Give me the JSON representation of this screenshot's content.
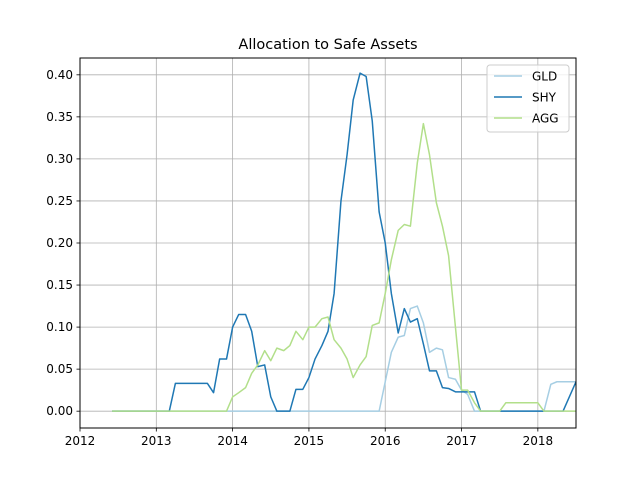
{
  "chart_data": {
    "type": "line",
    "title": "Allocation to Safe Assets",
    "xlabel": "",
    "ylabel": "",
    "xlim": [
      2012.0,
      2018.5
    ],
    "ylim": [
      -0.02,
      0.42
    ],
    "xticks": [
      2012,
      2013,
      2014,
      2015,
      2016,
      2017,
      2018
    ],
    "xtick_labels": [
      "2012",
      "2013",
      "2014",
      "2015",
      "2016",
      "2017",
      "2018"
    ],
    "yticks": [
      0.0,
      0.05,
      0.1,
      0.15,
      0.2,
      0.25,
      0.3,
      0.35,
      0.4
    ],
    "ytick_labels": [
      "0.00",
      "0.05",
      "0.10",
      "0.15",
      "0.20",
      "0.25",
      "0.30",
      "0.35",
      "0.40"
    ],
    "grid": true,
    "legend": "top-right",
    "series": [
      {
        "name": "GLD",
        "color": "#a6cee3",
        "points": [
          [
            2012.42,
            0.0
          ],
          [
            2015.92,
            0.0
          ],
          [
            2016.0,
            0.035
          ],
          [
            2016.08,
            0.07
          ],
          [
            2016.17,
            0.088
          ],
          [
            2016.25,
            0.09
          ],
          [
            2016.33,
            0.122
          ],
          [
            2016.42,
            0.125
          ],
          [
            2016.5,
            0.105
          ],
          [
            2016.58,
            0.07
          ],
          [
            2016.67,
            0.075
          ],
          [
            2016.75,
            0.073
          ],
          [
            2016.83,
            0.04
          ],
          [
            2016.92,
            0.038
          ],
          [
            2017.0,
            0.025
          ],
          [
            2017.08,
            0.02
          ],
          [
            2017.17,
            0.0
          ],
          [
            2018.08,
            0.0
          ],
          [
            2018.17,
            0.032
          ],
          [
            2018.25,
            0.035
          ],
          [
            2018.5,
            0.035
          ]
        ]
      },
      {
        "name": "SHY",
        "color": "#1f78b4",
        "points": [
          [
            2012.42,
            0.0
          ],
          [
            2013.17,
            0.0
          ],
          [
            2013.25,
            0.033
          ],
          [
            2013.67,
            0.033
          ],
          [
            2013.75,
            0.022
          ],
          [
            2013.83,
            0.062
          ],
          [
            2013.92,
            0.062
          ],
          [
            2014.0,
            0.1
          ],
          [
            2014.08,
            0.115
          ],
          [
            2014.17,
            0.115
          ],
          [
            2014.25,
            0.095
          ],
          [
            2014.33,
            0.053
          ],
          [
            2014.42,
            0.055
          ],
          [
            2014.5,
            0.017
          ],
          [
            2014.58,
            0.0
          ],
          [
            2014.75,
            0.0
          ],
          [
            2014.83,
            0.026
          ],
          [
            2014.92,
            0.026
          ],
          [
            2015.0,
            0.04
          ],
          [
            2015.08,
            0.062
          ],
          [
            2015.17,
            0.078
          ],
          [
            2015.25,
            0.095
          ],
          [
            2015.33,
            0.14
          ],
          [
            2015.42,
            0.25
          ],
          [
            2015.5,
            0.305
          ],
          [
            2015.58,
            0.37
          ],
          [
            2015.67,
            0.402
          ],
          [
            2015.75,
            0.398
          ],
          [
            2015.83,
            0.345
          ],
          [
            2015.92,
            0.237
          ],
          [
            2016.0,
            0.2
          ],
          [
            2016.08,
            0.14
          ],
          [
            2016.17,
            0.093
          ],
          [
            2016.25,
            0.122
          ],
          [
            2016.33,
            0.106
          ],
          [
            2016.42,
            0.11
          ],
          [
            2016.5,
            0.08
          ],
          [
            2016.58,
            0.048
          ],
          [
            2016.67,
            0.048
          ],
          [
            2016.75,
            0.028
          ],
          [
            2016.83,
            0.027
          ],
          [
            2016.92,
            0.023
          ],
          [
            2017.17,
            0.023
          ],
          [
            2017.25,
            0.0
          ],
          [
            2017.5,
            0.0
          ],
          [
            2018.08,
            0.0
          ],
          [
            2018.33,
            0.0
          ],
          [
            2018.5,
            0.035
          ]
        ]
      },
      {
        "name": "AGG",
        "color": "#b2df8a",
        "points": [
          [
            2012.42,
            0.0
          ],
          [
            2013.92,
            0.0
          ],
          [
            2014.0,
            0.017
          ],
          [
            2014.08,
            0.022
          ],
          [
            2014.17,
            0.028
          ],
          [
            2014.25,
            0.045
          ],
          [
            2014.33,
            0.055
          ],
          [
            2014.42,
            0.072
          ],
          [
            2014.5,
            0.06
          ],
          [
            2014.58,
            0.075
          ],
          [
            2014.67,
            0.072
          ],
          [
            2014.75,
            0.078
          ],
          [
            2014.83,
            0.095
          ],
          [
            2014.92,
            0.085
          ],
          [
            2015.0,
            0.1
          ],
          [
            2015.08,
            0.1
          ],
          [
            2015.17,
            0.11
          ],
          [
            2015.25,
            0.112
          ],
          [
            2015.33,
            0.085
          ],
          [
            2015.42,
            0.075
          ],
          [
            2015.5,
            0.062
          ],
          [
            2015.58,
            0.04
          ],
          [
            2015.67,
            0.055
          ],
          [
            2015.75,
            0.065
          ],
          [
            2015.83,
            0.102
          ],
          [
            2015.92,
            0.105
          ],
          [
            2016.0,
            0.14
          ],
          [
            2016.08,
            0.18
          ],
          [
            2016.17,
            0.215
          ],
          [
            2016.25,
            0.222
          ],
          [
            2016.33,
            0.22
          ],
          [
            2016.42,
            0.295
          ],
          [
            2016.5,
            0.342
          ],
          [
            2016.58,
            0.305
          ],
          [
            2016.67,
            0.248
          ],
          [
            2016.75,
            0.22
          ],
          [
            2016.83,
            0.185
          ],
          [
            2016.92,
            0.1
          ],
          [
            2017.0,
            0.025
          ],
          [
            2017.08,
            0.025
          ],
          [
            2017.17,
            0.01
          ],
          [
            2017.25,
            0.0
          ],
          [
            2017.5,
            0.0
          ],
          [
            2017.58,
            0.01
          ],
          [
            2017.92,
            0.01
          ],
          [
            2018.0,
            0.01
          ],
          [
            2018.08,
            0.0
          ],
          [
            2018.5,
            0.0
          ]
        ]
      }
    ]
  }
}
